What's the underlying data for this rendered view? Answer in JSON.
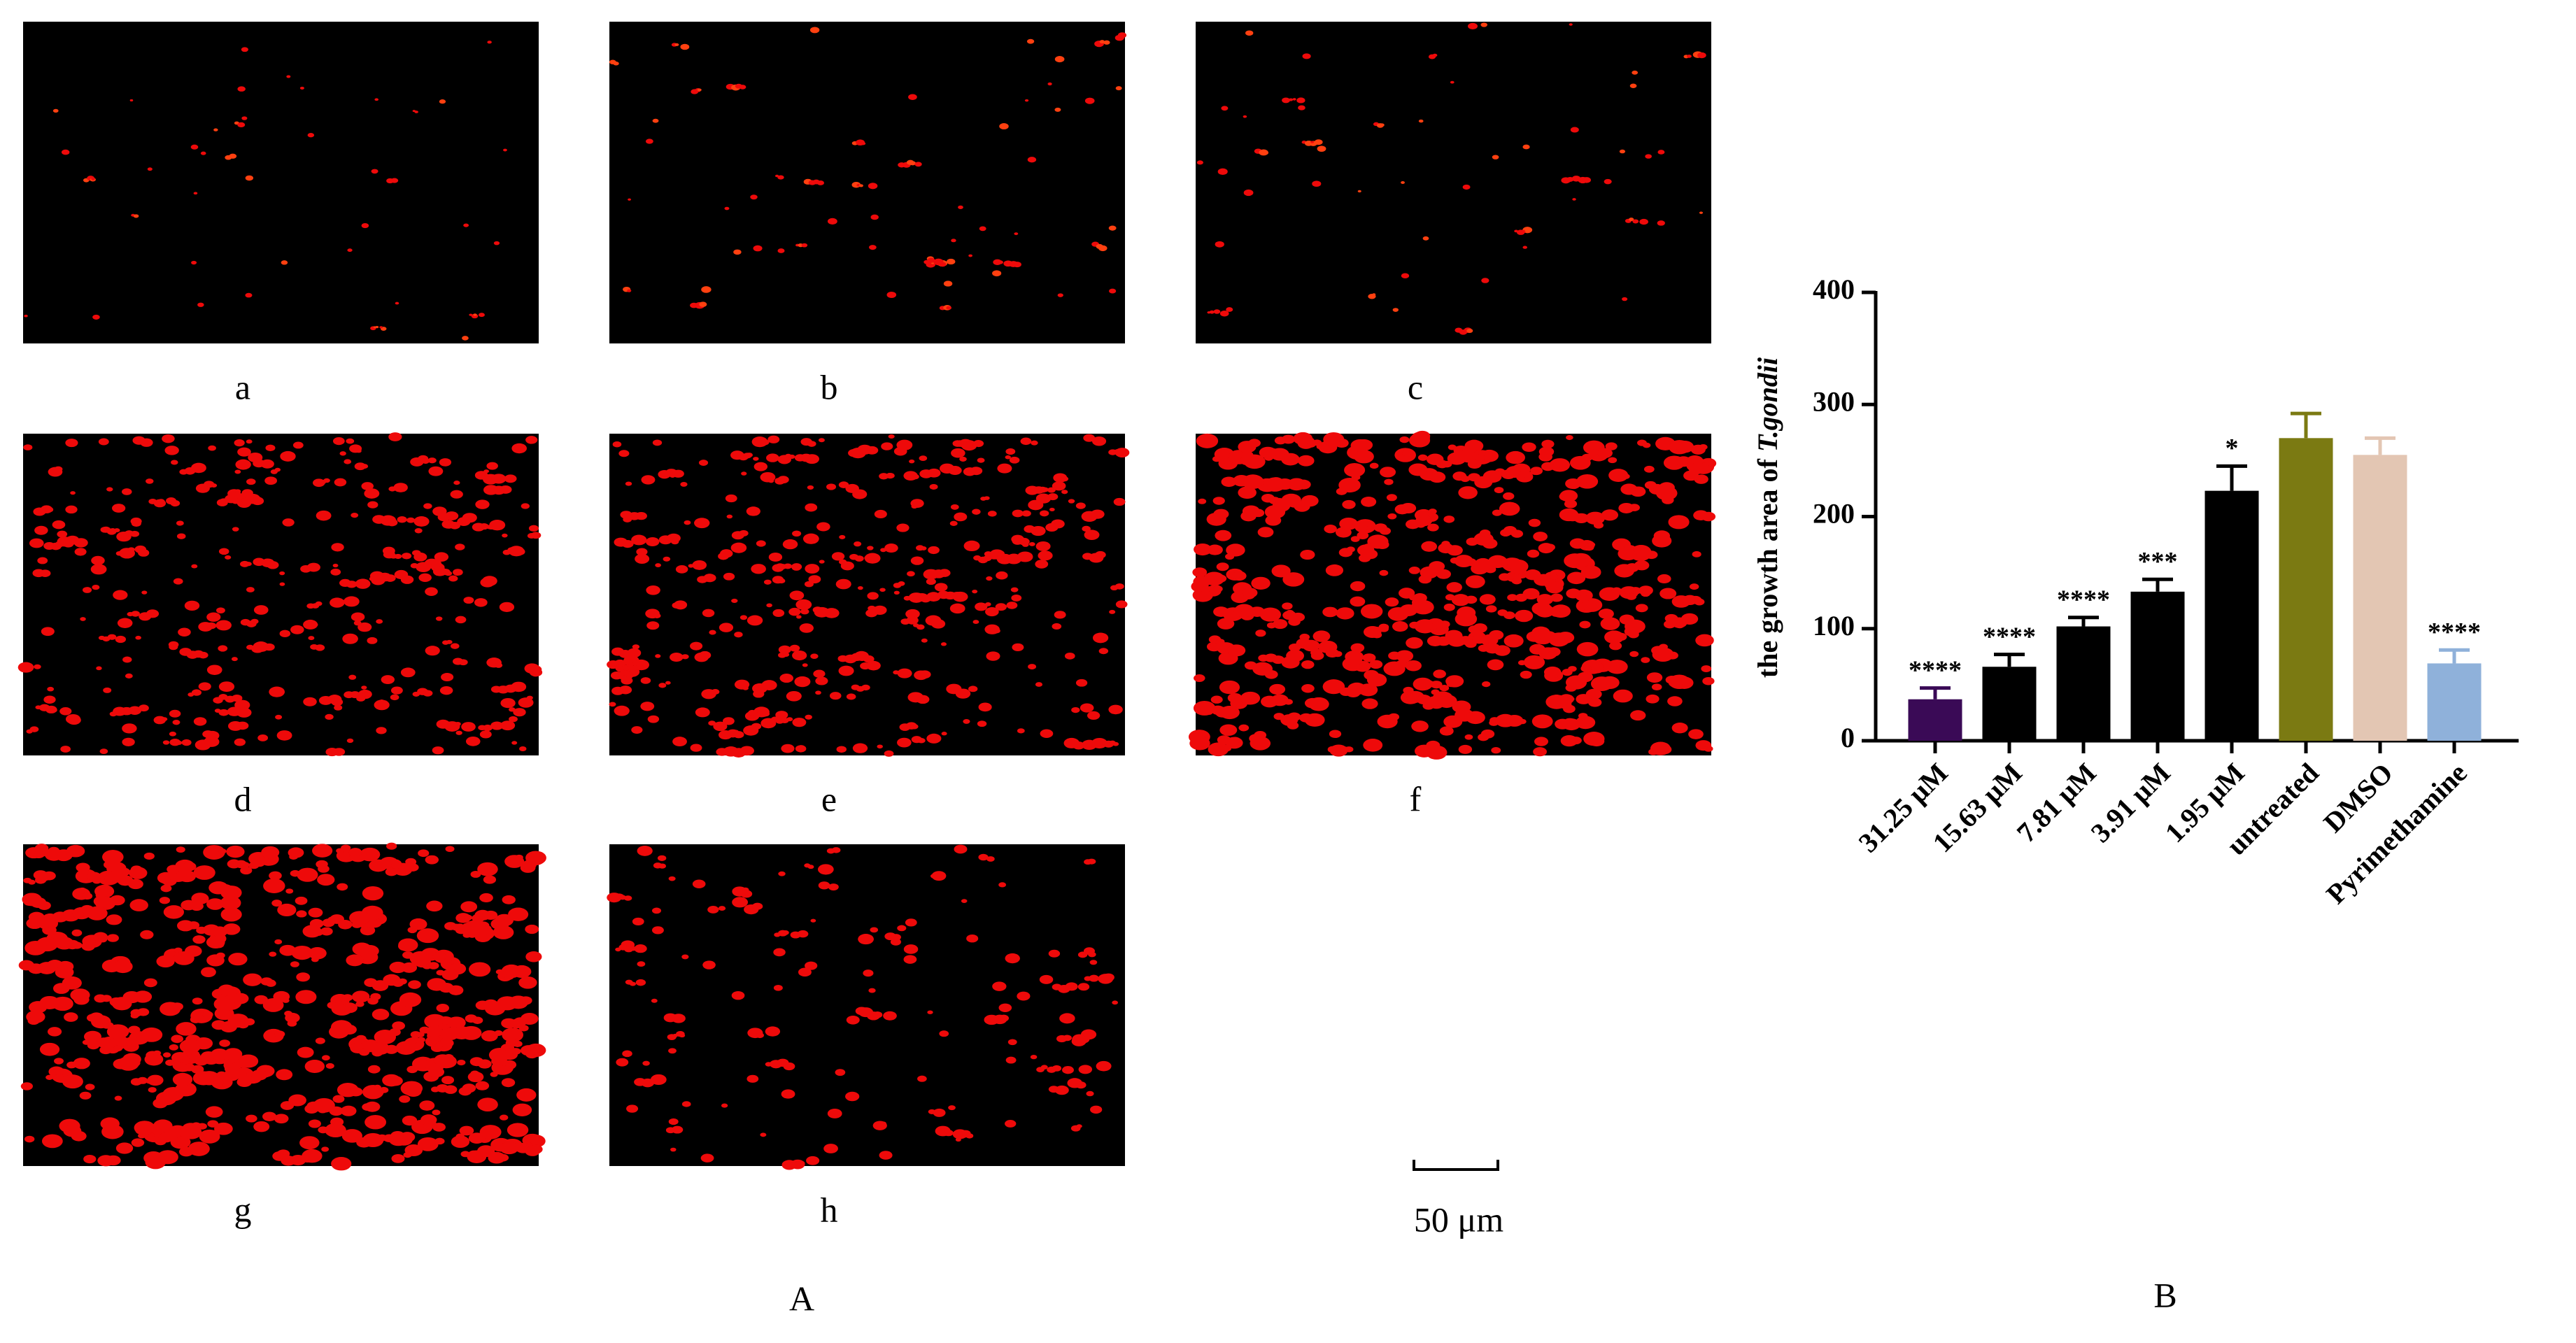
{
  "panels": [
    {
      "label": "a"
    },
    {
      "label": "b"
    },
    {
      "label": "c"
    },
    {
      "label": "d"
    },
    {
      "label": "e"
    },
    {
      "label": "f"
    },
    {
      "label": "g"
    },
    {
      "label": "h"
    }
  ],
  "scale_bar": "50 μm",
  "figure_labels": [
    "A",
    "B"
  ],
  "chart_data": {
    "type": "bar",
    "ylabel": "the growth area of",
    "ylabel_italic": "T.gondii",
    "categories": [
      "31.25 μM",
      "15.63 μM",
      "7.81 μM",
      "3.91 μM",
      "1.95 μM",
      "untreated",
      "DMSO",
      "Pyrimethamine"
    ],
    "values": [
      37,
      66,
      102,
      133,
      223,
      270,
      255,
      69
    ],
    "errors": [
      10,
      11,
      8,
      11,
      22,
      22,
      15,
      12
    ],
    "colors": [
      "#3a0a56",
      "#000000",
      "#000000",
      "#000000",
      "#000000",
      "#7b7a12",
      "#e3c6b3",
      "#8fb1da"
    ],
    "annotations": [
      "****",
      "****",
      "****",
      "***",
      "*",
      null,
      null,
      "****"
    ],
    "ylim": [
      0,
      400
    ],
    "yticks": [
      0,
      100,
      200,
      300,
      400
    ]
  }
}
